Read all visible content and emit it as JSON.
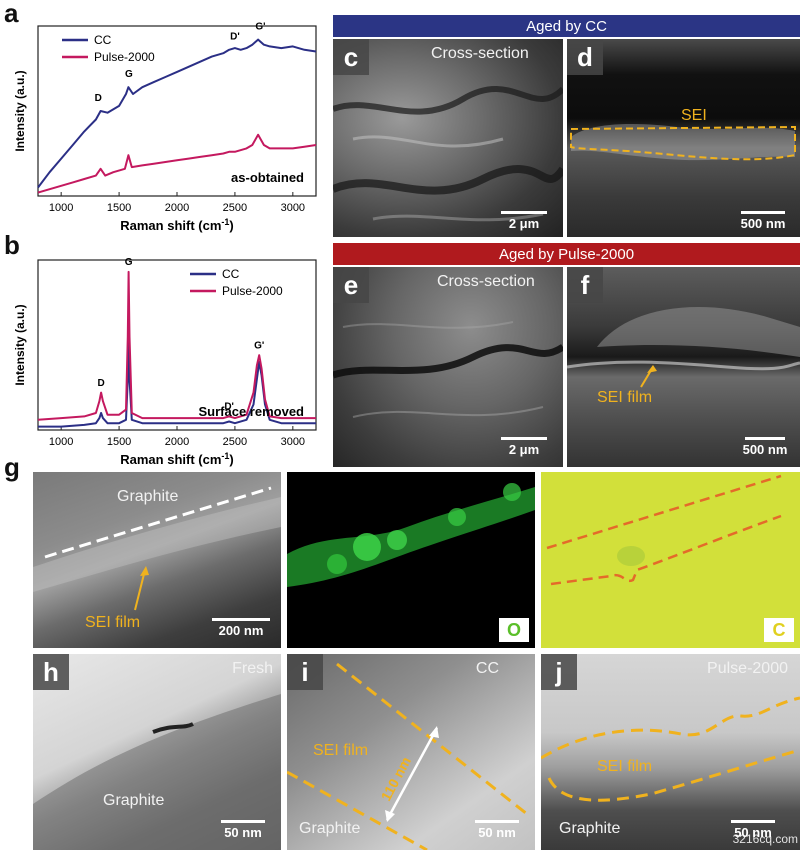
{
  "panel_labels": {
    "a": "a",
    "b": "b",
    "g": "g"
  },
  "chart_data": [
    {
      "type": "line",
      "panel": "a",
      "xlabel": "Raman shift (cm",
      "xlabel_sup": "-1",
      "xlabel_close": ")",
      "ylabel": "Intensity (a.u.)",
      "xlim": [
        800,
        3200
      ],
      "x_ticks": [
        "1000",
        "1500",
        "2000",
        "2500",
        "3000"
      ],
      "annotation": "as-obtained",
      "peak_labels": [
        "D",
        "G",
        "D'",
        "G'"
      ],
      "colors": {
        "CC": "#2b2f86",
        "Pulse-2000": "#c4195f"
      },
      "series": [
        {
          "name": "CC",
          "x": [
            800,
            900,
            1000,
            1100,
            1200,
            1300,
            1340,
            1400,
            1500,
            1560,
            1580,
            1620,
            1700,
            1800,
            1900,
            2000,
            2100,
            2200,
            2300,
            2400,
            2450,
            2500,
            2550,
            2600,
            2650,
            2700,
            2750,
            2800,
            2900,
            3000,
            3100,
            3200
          ],
          "y": [
            0.05,
            0.14,
            0.22,
            0.3,
            0.38,
            0.45,
            0.5,
            0.49,
            0.53,
            0.6,
            0.64,
            0.6,
            0.64,
            0.67,
            0.7,
            0.73,
            0.76,
            0.79,
            0.82,
            0.84,
            0.86,
            0.87,
            0.86,
            0.87,
            0.89,
            0.92,
            0.89,
            0.88,
            0.87,
            0.88,
            0.86,
            0.85
          ]
        },
        {
          "name": "Pulse-2000",
          "x": [
            800,
            900,
            1000,
            1100,
            1200,
            1300,
            1340,
            1380,
            1450,
            1550,
            1580,
            1610,
            1700,
            1800,
            1900,
            2000,
            2100,
            2200,
            2300,
            2400,
            2450,
            2500,
            2600,
            2650,
            2700,
            2750,
            2800,
            2900,
            3000,
            3100,
            3200
          ],
          "y": [
            0.02,
            0.04,
            0.06,
            0.08,
            0.1,
            0.12,
            0.16,
            0.12,
            0.14,
            0.16,
            0.24,
            0.17,
            0.18,
            0.19,
            0.2,
            0.21,
            0.22,
            0.23,
            0.24,
            0.25,
            0.26,
            0.26,
            0.28,
            0.3,
            0.36,
            0.3,
            0.28,
            0.28,
            0.28,
            0.29,
            0.3
          ]
        }
      ]
    },
    {
      "type": "line",
      "panel": "b",
      "xlabel": "Raman shift (cm",
      "xlabel_sup": "-1",
      "xlabel_close": ")",
      "ylabel": "Intensity (a.u.)",
      "xlim": [
        800,
        3200
      ],
      "x_ticks": [
        "1000",
        "1500",
        "2000",
        "2500",
        "3000"
      ],
      "annotation": "Surface removed",
      "peak_labels": [
        "D",
        "G",
        "D'",
        "G'"
      ],
      "colors": {
        "CC": "#2b2f86",
        "Pulse-2000": "#c4195f"
      },
      "series": [
        {
          "name": "CC",
          "x": [
            800,
            1000,
            1200,
            1300,
            1330,
            1345,
            1360,
            1400,
            1500,
            1560,
            1575,
            1582,
            1590,
            1610,
            1700,
            1900,
            2200,
            2400,
            2450,
            2500,
            2600,
            2660,
            2690,
            2710,
            2730,
            2760,
            2800,
            2900,
            3000,
            3200
          ],
          "y": [
            0.02,
            0.02,
            0.03,
            0.04,
            0.07,
            0.1,
            0.07,
            0.04,
            0.04,
            0.06,
            0.3,
            0.62,
            0.3,
            0.06,
            0.04,
            0.04,
            0.04,
            0.04,
            0.05,
            0.04,
            0.06,
            0.15,
            0.3,
            0.4,
            0.32,
            0.15,
            0.06,
            0.04,
            0.04,
            0.04
          ]
        },
        {
          "name": "Pulse-2000",
          "x": [
            800,
            1000,
            1200,
            1300,
            1330,
            1345,
            1360,
            1400,
            1500,
            1560,
            1575,
            1582,
            1590,
            1610,
            1700,
            1900,
            2200,
            2400,
            2450,
            2500,
            2600,
            2660,
            2690,
            2710,
            2730,
            2760,
            2800,
            2900,
            3000,
            3200
          ],
          "y": [
            0.06,
            0.07,
            0.08,
            0.1,
            0.17,
            0.22,
            0.17,
            0.09,
            0.09,
            0.12,
            0.55,
            0.93,
            0.55,
            0.1,
            0.07,
            0.07,
            0.07,
            0.07,
            0.08,
            0.07,
            0.09,
            0.22,
            0.38,
            0.44,
            0.36,
            0.18,
            0.08,
            0.07,
            0.07,
            0.07
          ]
        }
      ]
    }
  ],
  "legend": {
    "cc": "CC",
    "pulse": "Pulse-2000"
  },
  "band_cc": {
    "text": "Aged by CC",
    "color": "#2b3585"
  },
  "band_pulse": {
    "text": "Aged by Pulse-2000",
    "color": "#b01a1e"
  },
  "panel_c": {
    "letter": "c",
    "caption": "Cross-section",
    "scale": "2 μm"
  },
  "panel_d": {
    "letter": "d",
    "label": "SEI",
    "scale": "500 nm"
  },
  "panel_e": {
    "letter": "e",
    "caption": "Cross-section",
    "scale": "2 μm"
  },
  "panel_f": {
    "letter": "f",
    "label": "SEI film",
    "scale": "500 nm"
  },
  "panel_g1": {
    "top": "Graphite",
    "label": "SEI film",
    "scale": "200 nm"
  },
  "panel_g2": {
    "element": "O"
  },
  "panel_g3": {
    "element": "C"
  },
  "panel_h": {
    "letter": "h",
    "caption": "Fresh",
    "label": "Graphite",
    "scale": "50 nm"
  },
  "panel_i": {
    "letter": "i",
    "caption": "CC",
    "label1": "SEI film",
    "label2": "Graphite",
    "thickness": "110 nm",
    "scale": "50 nm"
  },
  "panel_j": {
    "letter": "j",
    "caption": "Pulse-2000",
    "label1": "SEI film",
    "label2": "Graphite",
    "scale": "50 nm"
  },
  "watermark": "3216cq.com"
}
